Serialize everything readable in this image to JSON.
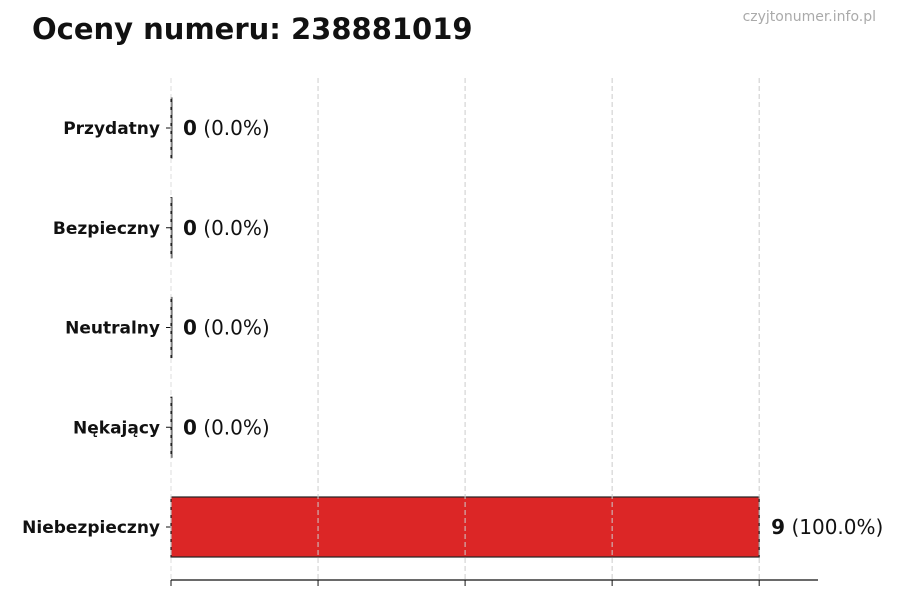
{
  "title": "Oceny numeru: 238881019",
  "watermark": "czyjtonumer.info.pl",
  "chart_data": {
    "type": "bar",
    "orientation": "horizontal",
    "title": "Oceny numeru: 238881019",
    "categories": [
      "Przydatny",
      "Bezpieczny",
      "Neutralny",
      "Nękający",
      "Niebezpieczny"
    ],
    "values": [
      0,
      0,
      0,
      0,
      9
    ],
    "data_labels": [
      {
        "count": "0",
        "percent": "(0.0%)"
      },
      {
        "count": "0",
        "percent": "(0.0%)"
      },
      {
        "count": "0",
        "percent": "(0.0%)"
      },
      {
        "count": "0",
        "percent": "(0.0%)"
      },
      {
        "count": "9",
        "percent": "(100.0%)"
      }
    ],
    "xlim": [
      0,
      9.9
    ],
    "xticks": [
      0,
      2.25,
      4.5,
      6.75,
      9
    ],
    "grid": "vertical dashed",
    "bar_color": "#dc2626",
    "xlabel": "",
    "ylabel": ""
  }
}
